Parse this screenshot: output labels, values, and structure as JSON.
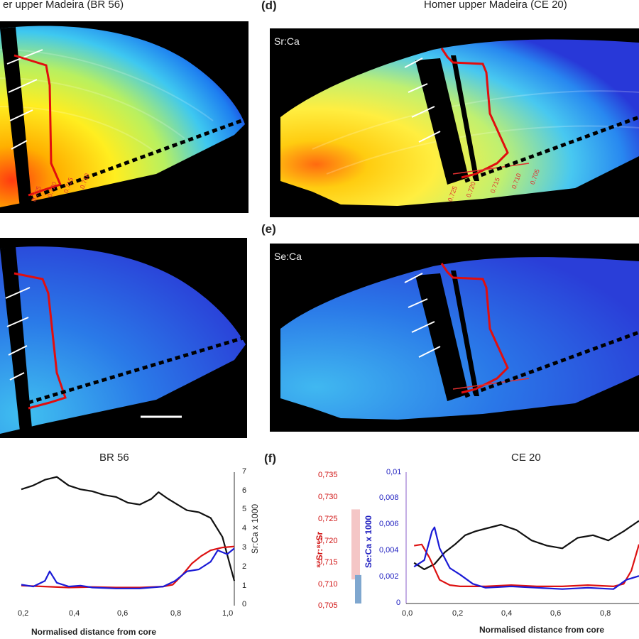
{
  "titles": {
    "top_left": "er upper Madeira (BR 56)",
    "top_right": "Homer upper Madeira (CE 20)",
    "bottom_left": "BR 56",
    "bottom_right": "CE 20"
  },
  "letters": {
    "d": "(d)",
    "e": "(e)",
    "f": "(f)"
  },
  "inset_labels": {
    "sr_ca": "Sr:Ca",
    "se_ca": "Se:Ca"
  },
  "transect_ticks_d": [
    "0.725",
    "0.720",
    "0.715",
    "0.710",
    "0.705"
  ],
  "transect_ticks_a": [
    "0.725",
    "0.720",
    "0.715",
    "0.710"
  ],
  "chart_data": [
    {
      "type": "line",
      "title": "BR 56",
      "xlabel": "Normalised distance from core",
      "ylabel_right": "Sr:Ca x 1000",
      "x_ticks": [
        "0,2",
        "0,4",
        "0,6",
        "0,8",
        "1,0"
      ],
      "y_right_ticks": [
        "0",
        "1",
        "2",
        "3",
        "4",
        "5",
        "6",
        "7"
      ],
      "xlim": [
        0.1,
        1.0
      ],
      "ylim_right": [
        0,
        7
      ],
      "series": [
        {
          "color": "#111111",
          "x": [
            0.1,
            0.15,
            0.2,
            0.25,
            0.3,
            0.35,
            0.4,
            0.45,
            0.5,
            0.55,
            0.6,
            0.65,
            0.68,
            0.72,
            0.76,
            0.8,
            0.85,
            0.9,
            0.95,
            1.0
          ],
          "y": [
            6.1,
            6.3,
            6.6,
            6.75,
            6.3,
            6.1,
            6.0,
            5.8,
            5.7,
            5.4,
            5.3,
            5.6,
            5.95,
            5.6,
            5.3,
            5.0,
            4.9,
            4.6,
            3.6,
            1.3
          ]
        },
        {
          "color": "#dd1111",
          "x": [
            0.1,
            0.2,
            0.3,
            0.4,
            0.5,
            0.6,
            0.7,
            0.74,
            0.78,
            0.82,
            0.86,
            0.9,
            0.95,
            1.0
          ],
          "y": [
            1.05,
            1.0,
            0.95,
            0.98,
            0.95,
            0.95,
            1.0,
            1.1,
            1.6,
            2.2,
            2.6,
            2.9,
            3.05,
            3.1
          ]
        },
        {
          "color": "#1a1ad6",
          "x": [
            0.1,
            0.15,
            0.2,
            0.22,
            0.25,
            0.3,
            0.35,
            0.4,
            0.5,
            0.6,
            0.7,
            0.75,
            0.8,
            0.85,
            0.9,
            0.93,
            0.97,
            1.0
          ],
          "y": [
            1.1,
            1.0,
            1.3,
            1.8,
            1.2,
            1.0,
            1.05,
            0.95,
            0.9,
            0.9,
            1.0,
            1.3,
            1.8,
            1.9,
            2.3,
            2.9,
            2.7,
            3.0
          ]
        }
      ]
    },
    {
      "type": "line",
      "title": "CE 20",
      "xlabel": "Normalised distance from core",
      "ylabel_left_red": "⁸⁷Sr:⁸⁶Sr",
      "ylabel_left_blue": "Se:Ca x 1000",
      "y_red_ticks": [
        "0,705",
        "0,710",
        "0,715",
        "0,720",
        "0,725",
        "0,730",
        "0,735"
      ],
      "y_blue_ticks": [
        "0",
        "0,002",
        "0,004",
        "0,006",
        "0,008",
        "0,01"
      ],
      "x_ticks": [
        "0,0",
        "0,2",
        "0,4",
        "0,6",
        "0,8"
      ],
      "xlim": [
        0.0,
        0.9
      ],
      "ylim_blue": [
        0,
        0.01
      ],
      "range_bars": [
        {
          "color": "#f4c6c6",
          "y_low": 0.7105,
          "y_high": 0.7265
        },
        {
          "color": "#7fa7cf",
          "y_low": 0.705,
          "y_high": 0.7115
        }
      ],
      "series": [
        {
          "color": "#111111",
          "x": [
            0.02,
            0.06,
            0.1,
            0.14,
            0.18,
            0.22,
            0.26,
            0.3,
            0.36,
            0.42,
            0.48,
            0.54,
            0.6,
            0.66,
            0.72,
            0.78,
            0.84,
            0.9
          ],
          "y": [
            0.0031,
            0.0026,
            0.003,
            0.0039,
            0.0045,
            0.0052,
            0.0055,
            0.0057,
            0.006,
            0.0056,
            0.0048,
            0.0044,
            0.0042,
            0.005,
            0.0052,
            0.0048,
            0.0055,
            0.0063
          ]
        },
        {
          "color": "#dd1111",
          "x": [
            0.02,
            0.05,
            0.08,
            0.12,
            0.16,
            0.2,
            0.3,
            0.4,
            0.5,
            0.6,
            0.7,
            0.8,
            0.84,
            0.87,
            0.9
          ],
          "y": [
            0.0044,
            0.0045,
            0.0035,
            0.0018,
            0.0014,
            0.0013,
            0.0013,
            0.0014,
            0.0013,
            0.0013,
            0.0014,
            0.0013,
            0.0015,
            0.0025,
            0.0045
          ]
        },
        {
          "color": "#1a1ad6",
          "x": [
            0.02,
            0.06,
            0.09,
            0.1,
            0.12,
            0.16,
            0.2,
            0.25,
            0.3,
            0.4,
            0.5,
            0.6,
            0.7,
            0.8,
            0.85,
            0.9
          ],
          "y": [
            0.0028,
            0.0033,
            0.0055,
            0.0058,
            0.0042,
            0.0027,
            0.0022,
            0.0015,
            0.0012,
            0.0013,
            0.0012,
            0.0011,
            0.0012,
            0.0011,
            0.0018,
            0.0021
          ]
        }
      ]
    }
  ]
}
